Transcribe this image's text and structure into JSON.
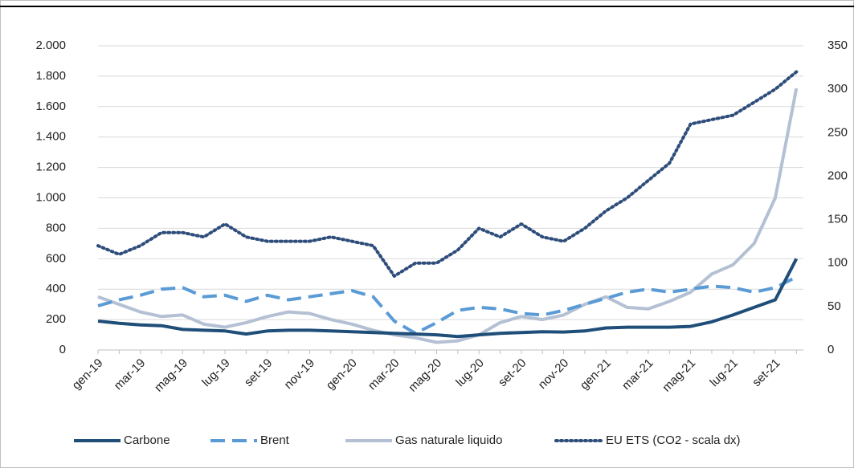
{
  "chart_data": {
    "type": "line",
    "categories": [
      "gen-19",
      null,
      "mar-19",
      null,
      "mag-19",
      null,
      "lug-19",
      null,
      "set-19",
      null,
      "nov-19",
      null,
      "gen-20",
      null,
      "mar-20",
      null,
      "mag-20",
      null,
      "lug-20",
      null,
      "set-20",
      null,
      "nov-20",
      null,
      "gen-21",
      null,
      "mar-21",
      null,
      "mag-21",
      null,
      "lug-21",
      null,
      "set-21",
      null
    ],
    "series": [
      {
        "name": "Carbone",
        "color": "#1f4e79",
        "dash": "solid",
        "values": [
          190,
          175,
          165,
          160,
          135,
          130,
          125,
          105,
          125,
          130,
          130,
          125,
          120,
          115,
          110,
          105,
          100,
          88,
          100,
          110,
          115,
          120,
          118,
          125,
          145,
          150,
          150,
          150,
          155,
          185,
          230,
          280,
          330,
          600
        ]
      },
      {
        "name": "Brent",
        "color": "#5b9bd5",
        "dash": "dashed",
        "values": [
          290,
          330,
          360,
          400,
          410,
          350,
          360,
          320,
          360,
          330,
          350,
          370,
          390,
          350,
          190,
          110,
          180,
          260,
          280,
          270,
          240,
          230,
          260,
          300,
          340,
          380,
          400,
          380,
          400,
          420,
          410,
          380,
          410,
          480
        ]
      },
      {
        "name": "Gas naturale liquido",
        "color": "#b4c0d3",
        "dash": "solid",
        "values": [
          350,
          300,
          250,
          220,
          230,
          170,
          150,
          180,
          220,
          250,
          240,
          200,
          170,
          130,
          100,
          80,
          50,
          60,
          100,
          180,
          220,
          200,
          230,
          300,
          350,
          280,
          270,
          320,
          380,
          500,
          560,
          700,
          1000,
          1720
        ]
      },
      {
        "name": "EU ETS (CO2 - scala dx)",
        "color": "#2e4d7b",
        "dash": "dotted",
        "axis": "y2",
        "values": [
          120,
          110,
          120,
          135,
          135,
          130,
          145,
          130,
          125,
          125,
          125,
          130,
          125,
          120,
          85,
          100,
          100,
          115,
          140,
          130,
          145,
          130,
          125,
          140,
          160,
          175,
          195,
          215,
          260,
          265,
          270,
          285,
          300,
          320
        ]
      }
    ],
    "ylim": [
      0,
      2000
    ],
    "yticks": [
      0,
      200,
      400,
      600,
      800,
      {
        "value": 1000,
        "label": "1.000"
      },
      {
        "value": 1200,
        "label": "1.200"
      },
      {
        "value": 1400,
        "label": "1.400"
      },
      {
        "value": 1600,
        "label": "1.600"
      },
      {
        "value": 1800,
        "label": "1.800"
      },
      {
        "value": 2000,
        "label": "2.000"
      }
    ],
    "y2lim": [
      0,
      350
    ],
    "y2ticks": [
      0,
      50,
      100,
      150,
      200,
      250,
      300,
      350
    ],
    "grid": true,
    "legend": "bottom"
  }
}
